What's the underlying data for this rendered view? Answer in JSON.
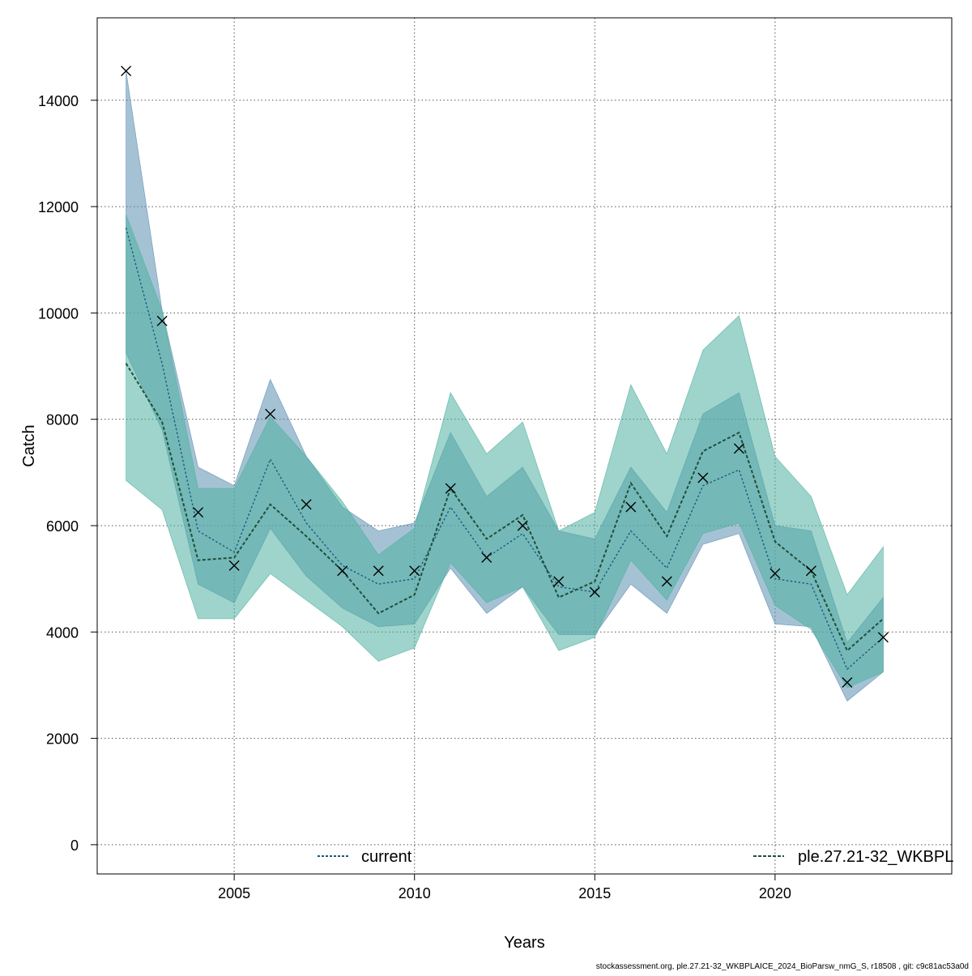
{
  "chart_data": {
    "type": "line",
    "xlabel": "Years",
    "ylabel": "Catch",
    "xlim": [
      2001.2,
      2024.9
    ],
    "ylim": [
      -550,
      15550
    ],
    "x_ticks": [
      2005,
      2010,
      2015,
      2020
    ],
    "y_ticks": [
      0,
      2000,
      4000,
      6000,
      8000,
      10000,
      12000,
      14000
    ],
    "x_tick_labels": [
      "2005",
      "2010",
      "2015",
      "2020"
    ],
    "y_tick_labels": [
      "0",
      "2000",
      "4000",
      "6000",
      "8000",
      "10000",
      "12000",
      "14000"
    ],
    "grid": true,
    "legend": {
      "placement": "bottom"
    },
    "x": [
      2002,
      2003,
      2004,
      2005,
      2006,
      2007,
      2008,
      2009,
      2010,
      2011,
      2012,
      2013,
      2014,
      2015,
      2016,
      2017,
      2018,
      2019,
      2020,
      2021,
      2022,
      2023
    ],
    "series": [
      {
        "name": "current",
        "line_color": "#1a5a80",
        "band_color": "#5b8fb0",
        "values": [
          11600,
          9050,
          5900,
          5500,
          7250,
          6050,
          5250,
          4900,
          5000,
          6350,
          5400,
          5850,
          4850,
          4750,
          5900,
          5200,
          6750,
          7050,
          5000,
          4900,
          3300,
          3900
        ],
        "lower": [
          9250,
          7800,
          4900,
          4550,
          5950,
          5050,
          4450,
          4100,
          4150,
          5200,
          4350,
          4850,
          3950,
          3950,
          4900,
          4350,
          5650,
          5850,
          4150,
          4100,
          2700,
          3250
        ],
        "upper": [
          14550,
          10050,
          7100,
          6750,
          8750,
          7300,
          6350,
          5900,
          6050,
          7750,
          6550,
          7100,
          5900,
          5750,
          7100,
          6250,
          8100,
          8500,
          6000,
          5900,
          3800,
          4650
        ]
      },
      {
        "name": "ple.27.21-32_WKBPL",
        "line_color": "#1f4f3a",
        "band_color": "#4fb0a0",
        "values": [
          9050,
          7950,
          5350,
          5400,
          6400,
          5800,
          5150,
          4350,
          4700,
          6700,
          5750,
          6200,
          4650,
          4950,
          6800,
          5800,
          7400,
          7750,
          5700,
          5150,
          3650,
          4250
        ],
        "lower": [
          6850,
          6300,
          4250,
          4250,
          5100,
          4600,
          4100,
          3450,
          3700,
          5300,
          4550,
          4850,
          3650,
          3900,
          5350,
          4600,
          5850,
          6050,
          4500,
          4050,
          2950,
          3250
        ],
        "upper": [
          11850,
          10050,
          6700,
          6700,
          8050,
          7300,
          6450,
          5450,
          5950,
          8500,
          7350,
          7950,
          5900,
          6250,
          8650,
          7350,
          9300,
          9950,
          7300,
          6550,
          4700,
          5600
        ]
      }
    ],
    "observations": {
      "marker": "x",
      "values": [
        14550,
        9850,
        6250,
        5250,
        8100,
        6400,
        5150,
        5150,
        5150,
        6700,
        5400,
        6000,
        4950,
        4750,
        6350,
        4950,
        6900,
        7450,
        5100,
        5150,
        3050,
        3900
      ]
    }
  },
  "footer": {
    "text": "stockassessment.org, ple.27.21-32_WKBPLAICE_2024_BioParsw_nmG_S, r18508 , git: c9c81ac53a0d"
  }
}
